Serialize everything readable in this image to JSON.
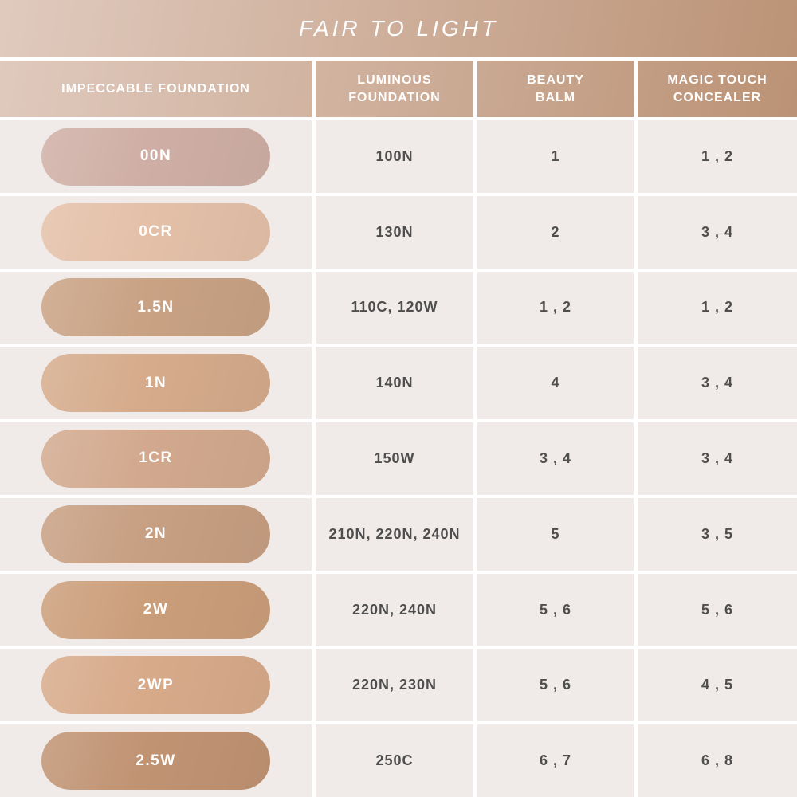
{
  "chart_data": {
    "type": "table",
    "title": "FAIR TO LIGHT",
    "columns": [
      "IMPECCABLE FOUNDATION",
      "LUMINOUS FOUNDATION",
      "BEAUTY BALM",
      "MAGIC TOUCH CONCEALER"
    ],
    "rows": [
      {
        "shade": "00N",
        "swatch_color": "#cfafa5",
        "luminous_foundation": "100N",
        "beauty_balm": "1",
        "magic_touch_concealer": "1 , 2"
      },
      {
        "shade": "0CR",
        "swatch_color": "#e4c0a8",
        "luminous_foundation": "130N",
        "beauty_balm": "2",
        "magic_touch_concealer": "3 , 4"
      },
      {
        "shade": "1.5N",
        "swatch_color": "#c9a284",
        "luminous_foundation": "110C, 120W",
        "beauty_balm": "1 , 2",
        "magic_touch_concealer": "1 , 2"
      },
      {
        "shade": "1N",
        "swatch_color": "#d5ab8b",
        "luminous_foundation": "140N",
        "beauty_balm": "4",
        "magic_touch_concealer": "3 , 4"
      },
      {
        "shade": "1CR",
        "swatch_color": "#d2a98e",
        "luminous_foundation": "150W",
        "beauty_balm": "3 , 4",
        "magic_touch_concealer": "3 , 4"
      },
      {
        "shade": "2N",
        "swatch_color": "#c79f82",
        "luminous_foundation": "210N, 220N, 240N",
        "beauty_balm": "5",
        "magic_touch_concealer": "3 , 5"
      },
      {
        "shade": "2W",
        "swatch_color": "#cb9e7a",
        "luminous_foundation": "220N, 240N",
        "beauty_balm": "5 , 6",
        "magic_touch_concealer": "5 , 6"
      },
      {
        "shade": "2WP",
        "swatch_color": "#d7aa8a",
        "luminous_foundation": "220N, 230N",
        "beauty_balm": "5 , 6",
        "magic_touch_concealer": "4 , 5"
      },
      {
        "shade": "2.5W",
        "swatch_color": "#c09373",
        "luminous_foundation": "250C",
        "beauty_balm": "6 , 7",
        "magic_touch_concealer": "6 , 8"
      }
    ]
  },
  "theme": {
    "header_gradient_left": "#e0cabe",
    "header_gradient_right": "#bb9275",
    "grid_line": "#ffffff",
    "cell_background": "#f0ebe8",
    "cell_text": "#4f4e4e",
    "header_text": "#ffffff"
  }
}
